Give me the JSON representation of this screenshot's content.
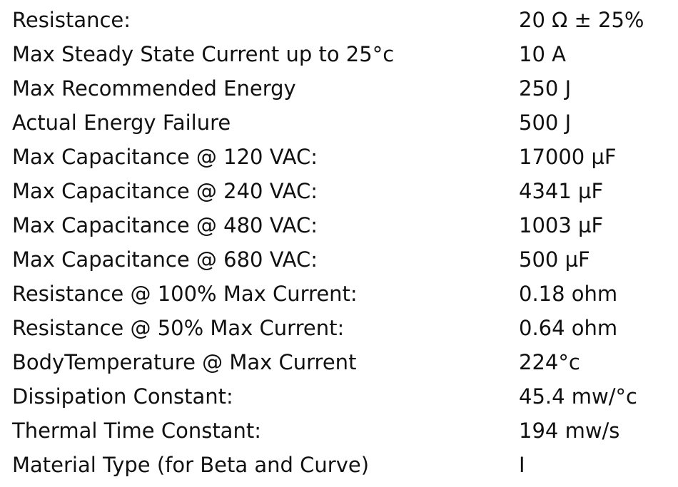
{
  "table": {
    "rows": [
      [
        "Resistance:",
        "20 Ω ± 25%"
      ],
      [
        "Max Steady State Current up to 25°c",
        "10 A"
      ],
      [
        "Max Recommended Energy",
        "250 J"
      ],
      [
        "Actual Energy Failure",
        "500 J"
      ],
      [
        "Max Capacitance @ 120 VAC:",
        "17000 µF"
      ],
      [
        "Max Capacitance @ 240 VAC:",
        "4341 µF"
      ],
      [
        "Max Capacitance @ 480 VAC:",
        "1003 µF"
      ],
      [
        "Max Capacitance @ 680 VAC:",
        "500 µF"
      ],
      [
        "Resistance @ 100% Max Current:",
        "0.18 ohm"
      ],
      [
        "Resistance @ 50% Max Current:",
        "0.64 ohm"
      ],
      [
        "BodyTemperature @ Max Current",
        "224°c"
      ],
      [
        "Dissipation Constant:",
        "45.4 mw/°c"
      ],
      [
        "Thermal Time Constant:",
        "194 mw/s"
      ],
      [
        "Material Type (for Beta and Curve)",
        "I"
      ]
    ]
  }
}
